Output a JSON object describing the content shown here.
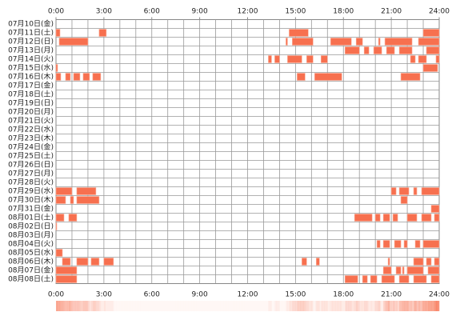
{
  "chart_data": {
    "type": "timeline",
    "color": "#f7704f",
    "grid": true,
    "xlim": [
      0,
      24
    ],
    "xticks": [
      {
        "value": 0,
        "label": "0:00"
      },
      {
        "value": 3,
        "label": "3:00"
      },
      {
        "value": 6,
        "label": "6:00"
      },
      {
        "value": 9,
        "label": "9:00"
      },
      {
        "value": 12,
        "label": "12:00"
      },
      {
        "value": 15,
        "label": "15:00"
      },
      {
        "value": 18,
        "label": "18:00"
      },
      {
        "value": 21,
        "label": "21:00"
      },
      {
        "value": 24,
        "label": "24:00"
      }
    ],
    "rows": [
      {
        "label": "07月10日(金)",
        "segments": []
      },
      {
        "label": "07月11日(土)",
        "segments": [
          [
            0,
            0.25
          ],
          [
            2.7,
            3.15
          ],
          [
            14.6,
            15.8
          ],
          [
            23,
            24
          ]
        ]
      },
      {
        "label": "07月12日(日)",
        "segments": [
          [
            0.2,
            2.0
          ],
          [
            14.4,
            14.5
          ],
          [
            14.8,
            16.1
          ],
          [
            17.2,
            18.5
          ],
          [
            18.8,
            19.2
          ],
          [
            20.2,
            20.3
          ],
          [
            20.6,
            22.3
          ],
          [
            22.7,
            24
          ]
        ]
      },
      {
        "label": "07月13日(月)",
        "segments": [
          [
            18.1,
            19.0
          ],
          [
            19.3,
            19.6
          ],
          [
            19.9,
            20.4
          ],
          [
            20.7,
            21.2
          ],
          [
            21.5,
            22.3
          ],
          [
            23.2,
            24
          ]
        ]
      },
      {
        "label": "07月14日(火)",
        "segments": [
          [
            13.3,
            13.5
          ],
          [
            13.7,
            14.0
          ],
          [
            14.5,
            15.4
          ],
          [
            15.7,
            16.1
          ],
          [
            16.6,
            17.0
          ],
          [
            22.2,
            22.5
          ],
          [
            22.7,
            23.2
          ],
          [
            23.8,
            24
          ]
        ]
      },
      {
        "label": "07月15日(水)",
        "segments": [
          [
            0,
            0.1
          ],
          [
            23.0,
            23.9
          ]
        ]
      },
      {
        "label": "07月16日(木)",
        "segments": [
          [
            0,
            0.3
          ],
          [
            0.6,
            0.9
          ],
          [
            1.1,
            1.5
          ],
          [
            1.7,
            2.1
          ],
          [
            2.3,
            2.8
          ],
          [
            15.1,
            15.6
          ],
          [
            16.2,
            17.9
          ],
          [
            21.6,
            22.8
          ]
        ]
      },
      {
        "label": "07月17日(金)",
        "segments": []
      },
      {
        "label": "07月18日(土)",
        "segments": []
      },
      {
        "label": "07月19日(日)",
        "segments": []
      },
      {
        "label": "07月20日(月)",
        "segments": []
      },
      {
        "label": "07月21日(火)",
        "segments": []
      },
      {
        "label": "07月22日(水)",
        "segments": []
      },
      {
        "label": "07月23日(木)",
        "segments": []
      },
      {
        "label": "07月24日(金)",
        "segments": []
      },
      {
        "label": "07月25日(土)",
        "segments": []
      },
      {
        "label": "07月26日(日)",
        "segments": []
      },
      {
        "label": "07月27日(月)",
        "segments": []
      },
      {
        "label": "07月28日(火)",
        "segments": []
      },
      {
        "label": "07月29日(水)",
        "segments": [
          [
            0,
            1.0
          ],
          [
            1.3,
            2.5
          ],
          [
            21.0,
            21.3
          ],
          [
            21.5,
            22.1
          ],
          [
            22.4,
            22.6
          ],
          [
            22.9,
            24
          ]
        ]
      },
      {
        "label": "07月30日(木)",
        "segments": [
          [
            0,
            0.6
          ],
          [
            0.9,
            1.1
          ],
          [
            1.3,
            2.7
          ],
          [
            21.6,
            22.0
          ]
        ]
      },
      {
        "label": "07月31日(金)",
        "segments": [
          [
            23.5,
            24
          ]
        ]
      },
      {
        "label": "08月01日(土)",
        "segments": [
          [
            0,
            0.5
          ],
          [
            0.8,
            1.3
          ],
          [
            18.7,
            19.8
          ],
          [
            20.0,
            20.3
          ],
          [
            20.5,
            20.9
          ],
          [
            21.1,
            21.4
          ],
          [
            22.0,
            22.6
          ],
          [
            22.9,
            23.5
          ],
          [
            23.7,
            24
          ]
        ]
      },
      {
        "label": "08月02日(日)",
        "segments": [
          [
            0,
            0.05
          ]
        ]
      },
      {
        "label": "08月03日(月)",
        "segments": []
      },
      {
        "label": "08月04日(火)",
        "segments": [
          [
            20.1,
            20.3
          ],
          [
            20.5,
            20.9
          ],
          [
            21.2,
            21.6
          ],
          [
            21.8,
            22.0
          ],
          [
            22.5,
            22.8
          ],
          [
            23.0,
            24
          ]
        ]
      },
      {
        "label": "08月05日(水)",
        "segments": [
          [
            0,
            0.4
          ]
        ]
      },
      {
        "label": "08月06日(木)",
        "segments": [
          [
            0.4,
            0.9
          ],
          [
            1.3,
            2.0
          ],
          [
            2.2,
            2.7
          ],
          [
            3.0,
            3.6
          ],
          [
            15.4,
            15.7
          ],
          [
            16.3,
            16.5
          ],
          [
            20.8,
            20.9
          ],
          [
            22.4,
            23.0
          ],
          [
            23.2,
            23.5
          ],
          [
            23.7,
            24
          ]
        ]
      },
      {
        "label": "08月07日(金)",
        "segments": [
          [
            0,
            1.3
          ],
          [
            20.5,
            21.0
          ],
          [
            21.3,
            21.6
          ],
          [
            21.7,
            21.8
          ],
          [
            22.0,
            23.0
          ],
          [
            23.3,
            24
          ]
        ]
      },
      {
        "label": "08月08日(土)",
        "segments": [
          [
            0,
            1.3
          ],
          [
            18.1,
            18.9
          ],
          [
            19.2,
            19.5
          ],
          [
            19.7,
            20.1
          ],
          [
            20.4,
            21.2
          ],
          [
            21.5,
            22.1
          ],
          [
            22.4,
            23.2
          ],
          [
            23.5,
            24
          ]
        ]
      }
    ]
  }
}
